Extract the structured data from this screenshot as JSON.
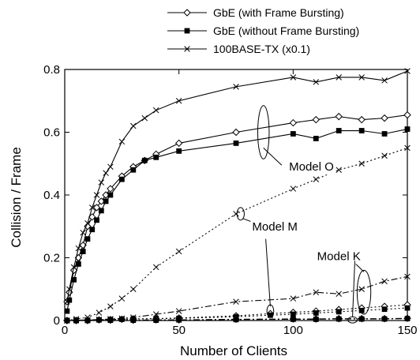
{
  "chart_data": {
    "type": "line",
    "title": "",
    "xlabel": "Number of Clients",
    "ylabel": "Collision / Frame",
    "xlim": [
      0,
      150
    ],
    "ylim": [
      0,
      0.8
    ],
    "x_ticks": [
      0,
      50,
      100,
      150
    ],
    "y_ticks": [
      0,
      0.2,
      0.4,
      0.6,
      0.8
    ],
    "x_tick_labels": [
      "0",
      "50",
      "100",
      "150"
    ],
    "y_tick_labels": [
      "0",
      "0.2",
      "0.4",
      "0.6",
      "0.8"
    ],
    "grid": false,
    "legend_position": "top-right",
    "legend": [
      {
        "label": "GbE (with Frame Bursting)",
        "marker": "diamond-open",
        "dash": "solid"
      },
      {
        "label": "GbE (without Frame Bursting)",
        "marker": "square-filled",
        "dash": "solid"
      },
      {
        "label": "100BASE-TX (x0.1)",
        "marker": "cross",
        "dash": "solid"
      }
    ],
    "annotations": [
      {
        "text": "Model O",
        "at": [
          108,
          0.49
        ],
        "ellipse": [
          87,
          0.6,
          2.5,
          0.085
        ],
        "pointer": [
          [
            87,
            0.55
          ],
          [
            95,
            0.495
          ]
        ]
      },
      {
        "text": "Model M",
        "at": [
          92,
          0.3
        ],
        "ellipse": [
          77,
          0.34,
          1.6,
          0.02
        ],
        "pointer": [
          [
            78,
            0.325
          ],
          [
            89,
            0.295
          ]
        ]
      },
      {
        "text": "Model K",
        "at": [
          120,
          0.205
        ],
        "ellipse": [
          131,
          0.09,
          3,
          0.07
        ],
        "pointer": [
          [
            131,
            0.155
          ],
          [
            126,
            0.19
          ]
        ]
      },
      {
        "ellipse": [
          90,
          0.03,
          1.5,
          0.02
        ],
        "pointer": [
          [
            90,
            0.045
          ],
          [
            88,
            0.26
          ]
        ]
      },
      {
        "ellipse": [
          126,
          0.002,
          2,
          0.01
        ],
        "pointer": [
          [
            126,
            0.012
          ],
          [
            127,
            0.19
          ]
        ]
      }
    ],
    "series": [
      {
        "group": "Model O",
        "kind": "gbe_burst",
        "marker": "diamond-open",
        "dash": "solid",
        "x": [
          1,
          2,
          4,
          6,
          8,
          10,
          12,
          14,
          16,
          18,
          20,
          25,
          30,
          35,
          40,
          50,
          75,
          100,
          110,
          120,
          130,
          140,
          150
        ],
        "y": [
          0.06,
          0.09,
          0.16,
          0.2,
          0.24,
          0.3,
          0.33,
          0.36,
          0.38,
          0.4,
          0.42,
          0.46,
          0.49,
          0.51,
          0.53,
          0.565,
          0.6,
          0.63,
          0.64,
          0.65,
          0.64,
          0.645,
          0.655
        ]
      },
      {
        "group": "Model O",
        "kind": "gbe_noburst",
        "marker": "square-filled",
        "dash": "solid",
        "x": [
          1,
          2,
          4,
          6,
          8,
          10,
          12,
          14,
          16,
          18,
          20,
          25,
          30,
          35,
          40,
          50,
          75,
          100,
          110,
          120,
          130,
          140,
          150
        ],
        "y": [
          0.03,
          0.065,
          0.13,
          0.18,
          0.22,
          0.26,
          0.29,
          0.32,
          0.35,
          0.38,
          0.4,
          0.45,
          0.48,
          0.51,
          0.52,
          0.54,
          0.565,
          0.595,
          0.58,
          0.605,
          0.605,
          0.595,
          0.61
        ]
      },
      {
        "group": "Model O",
        "kind": "fe",
        "marker": "cross",
        "dash": "solid",
        "x": [
          1,
          2,
          4,
          6,
          8,
          10,
          12,
          14,
          16,
          18,
          20,
          25,
          30,
          35,
          40,
          50,
          75,
          100,
          110,
          120,
          130,
          140,
          150
        ],
        "y": [
          0.06,
          0.1,
          0.17,
          0.23,
          0.28,
          0.31,
          0.36,
          0.4,
          0.44,
          0.47,
          0.49,
          0.57,
          0.62,
          0.645,
          0.67,
          0.7,
          0.745,
          0.775,
          0.76,
          0.775,
          0.775,
          0.765,
          0.795
        ]
      },
      {
        "group": "Model M",
        "kind": "gbe_burst",
        "marker": "diamond-open",
        "dash": "dot",
        "x": [
          1,
          5,
          10,
          15,
          20,
          25,
          30,
          40,
          50,
          75,
          90,
          100,
          110,
          120,
          130,
          140,
          150
        ],
        "y": [
          0,
          0,
          0.001,
          0.002,
          0.003,
          0.004,
          0.005,
          0.006,
          0.008,
          0.015,
          0.022,
          0.026,
          0.03,
          0.035,
          0.04,
          0.045,
          0.05
        ]
      },
      {
        "group": "Model M",
        "kind": "gbe_noburst",
        "marker": "square-filled",
        "dash": "dot",
        "x": [
          1,
          5,
          10,
          15,
          20,
          25,
          30,
          40,
          50,
          75,
          90,
          100,
          110,
          120,
          130,
          140,
          150
        ],
        "y": [
          0,
          0,
          0.001,
          0.002,
          0.003,
          0.004,
          0.005,
          0.006,
          0.007,
          0.012,
          0.017,
          0.02,
          0.024,
          0.028,
          0.032,
          0.036,
          0.04
        ]
      },
      {
        "group": "Model M",
        "kind": "fe",
        "marker": "cross",
        "dash": "dot",
        "x": [
          1,
          5,
          10,
          15,
          20,
          25,
          30,
          40,
          50,
          75,
          100,
          110,
          120,
          130,
          140,
          150
        ],
        "y": [
          0,
          0.005,
          0.01,
          0.025,
          0.045,
          0.07,
          0.1,
          0.17,
          0.22,
          0.34,
          0.42,
          0.45,
          0.48,
          0.5,
          0.525,
          0.55
        ]
      },
      {
        "group": "Model K",
        "kind": "gbe_burst",
        "marker": "diamond-open",
        "dash": "dashdot",
        "x": [
          1,
          5,
          10,
          20,
          30,
          40,
          50,
          75,
          100,
          110,
          120,
          130,
          140,
          150
        ],
        "y": [
          0,
          0,
          0,
          0.001,
          0.001,
          0.002,
          0.002,
          0.004,
          0.005,
          0.005,
          0.006,
          0.006,
          0.006,
          0.007
        ]
      },
      {
        "group": "Model K",
        "kind": "gbe_noburst",
        "marker": "square-filled",
        "dash": "dashdot",
        "x": [
          1,
          5,
          10,
          20,
          30,
          40,
          50,
          75,
          100,
          110,
          120,
          130,
          140,
          150
        ],
        "y": [
          0,
          0,
          0,
          0.001,
          0.001,
          0.001,
          0.002,
          0.003,
          0.004,
          0.004,
          0.005,
          0.005,
          0.005,
          0.006
        ]
      },
      {
        "group": "Model K",
        "kind": "fe",
        "marker": "cross",
        "dash": "dashdot",
        "x": [
          1,
          5,
          10,
          15,
          20,
          25,
          30,
          40,
          50,
          75,
          100,
          110,
          120,
          130,
          140,
          150
        ],
        "y": [
          0,
          0.001,
          0.002,
          0.003,
          0.005,
          0.007,
          0.01,
          0.02,
          0.03,
          0.06,
          0.07,
          0.09,
          0.085,
          0.1,
          0.125,
          0.14
        ]
      }
    ]
  }
}
